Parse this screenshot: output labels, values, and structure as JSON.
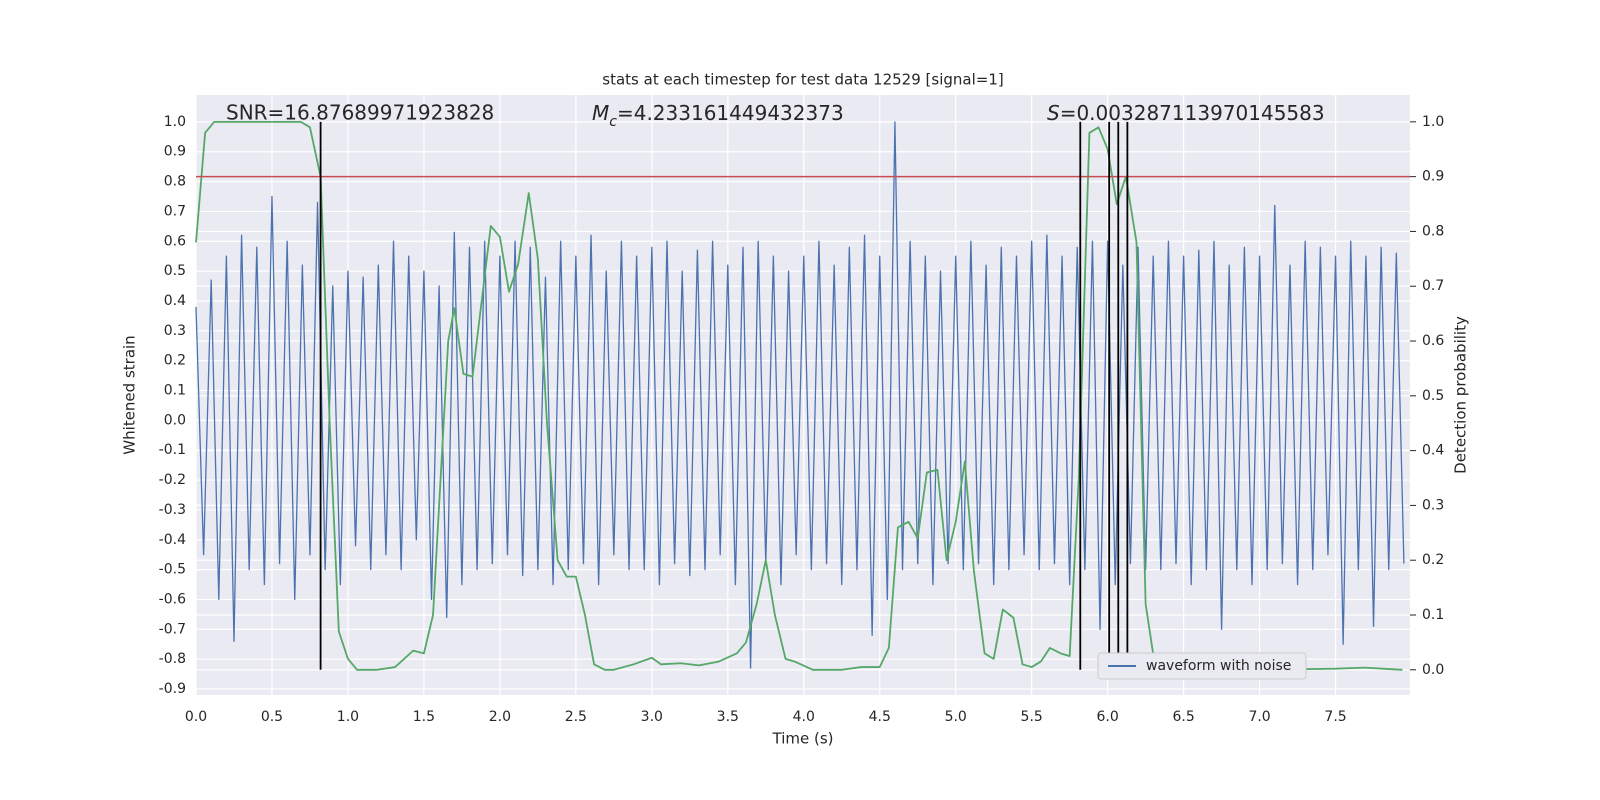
{
  "chart_data": {
    "type": "line",
    "title": "stats at each timestep for test data 12529 [signal=1]",
    "xlabel": "Time (s)",
    "ylabel": "Whitened strain",
    "y2label": "Detection probability",
    "annotations": [
      "SNR=16.87689971923828",
      {
        "symbol": "M",
        "subscript": "c",
        "text": "=4.233161449432373"
      },
      {
        "symbol": "S",
        "text": "=0.003287113970145583"
      }
    ],
    "xlim": [
      0,
      7.99
    ],
    "ylim": [
      -0.92,
      1.09
    ],
    "y2lim": [
      -0.046,
      1.049
    ],
    "xticks": [
      {
        "value": 0,
        "label": "0.0"
      },
      0.5,
      {
        "value": 1,
        "label": "1.0"
      },
      1.5,
      {
        "value": 2,
        "label": "2.0"
      },
      2.5,
      {
        "value": 3,
        "label": "3.0"
      },
      3.5,
      {
        "value": 4,
        "label": "4.0"
      },
      4.5,
      {
        "value": 5,
        "label": "5.0"
      },
      5.5,
      {
        "value": 6,
        "label": "6.0"
      },
      6.5,
      {
        "value": 7,
        "label": "7.0"
      },
      7.5
    ],
    "yticks": [
      -0.9,
      -0.8,
      -0.7,
      -0.6,
      -0.5,
      -0.4,
      -0.3,
      -0.2,
      -0.1,
      {
        "value": 0,
        "label": "0.0"
      },
      0.1,
      0.2,
      0.3,
      0.4,
      0.5,
      0.6,
      0.7,
      0.8,
      0.9,
      {
        "value": 1,
        "label": "1.0"
      }
    ],
    "y2ticks": [
      {
        "value": 0,
        "label": "0.0"
      },
      0.1,
      0.2,
      0.3,
      0.4,
      0.5,
      0.6,
      0.7,
      0.8,
      0.9,
      {
        "value": 1,
        "label": "1.0"
      }
    ],
    "grid": true,
    "legend": "lower right",
    "series": [
      {
        "name": "waveform with noise",
        "color": "#4c72b0",
        "x": [
          0,
          0.05,
          0.1,
          0.15,
          0.2,
          0.25,
          0.3,
          0.35,
          0.4,
          0.45,
          0.5,
          0.55,
          0.6,
          0.65,
          0.7,
          0.75,
          0.8,
          0.85,
          0.9,
          0.95,
          1,
          1.05,
          1.1,
          1.15,
          1.2,
          1.25,
          1.3,
          1.35,
          1.4,
          1.45,
          1.5,
          1.55,
          1.6,
          1.65,
          1.7,
          1.75,
          1.8,
          1.85,
          1.9,
          1.95,
          2,
          2.05,
          2.1,
          2.15,
          2.2,
          2.25,
          2.3,
          2.35,
          2.4,
          2.45,
          2.5,
          2.55,
          2.6,
          2.65,
          2.7,
          2.75,
          2.8,
          2.85,
          2.9,
          2.95,
          3,
          3.05,
          3.1,
          3.15,
          3.2,
          3.25,
          3.3,
          3.35,
          3.4,
          3.45,
          3.5,
          3.55,
          3.6,
          3.65,
          3.7,
          3.75,
          3.8,
          3.85,
          3.9,
          3.95,
          4,
          4.05,
          4.1,
          4.15,
          4.2,
          4.25,
          4.3,
          4.35,
          4.4,
          4.45,
          4.5,
          4.55,
          4.6,
          4.65,
          4.7,
          4.75,
          4.8,
          4.85,
          4.9,
          4.95,
          5,
          5.05,
          5.1,
          5.15,
          5.2,
          5.25,
          5.3,
          5.35,
          5.4,
          5.45,
          5.5,
          5.55,
          5.6,
          5.65,
          5.7,
          5.75,
          5.8,
          5.85,
          5.9,
          5.95,
          6,
          6.05,
          6.1,
          6.15,
          6.2,
          6.25,
          6.3,
          6.35,
          6.4,
          6.45,
          6.5,
          6.55,
          6.6,
          6.65,
          6.7,
          6.75,
          6.8,
          6.85,
          6.9,
          6.95,
          7,
          7.05,
          7.1,
          7.15,
          7.2,
          7.25,
          7.3,
          7.35,
          7.4,
          7.45,
          7.5,
          7.55,
          7.6,
          7.65,
          7.7,
          7.75,
          7.8,
          7.85,
          7.9,
          7.95
        ],
        "values": [
          0.38,
          -0.45,
          0.47,
          -0.6,
          0.55,
          -0.74,
          0.62,
          -0.5,
          0.58,
          -0.55,
          0.75,
          -0.48,
          0.6,
          -0.6,
          0.52,
          -0.45,
          0.73,
          -0.5,
          0.45,
          -0.55,
          0.5,
          -0.42,
          0.48,
          -0.5,
          0.52,
          -0.45,
          0.6,
          -0.5,
          0.55,
          -0.4,
          0.5,
          -0.6,
          0.45,
          -0.66,
          0.63,
          -0.55,
          0.58,
          -0.5,
          0.6,
          -0.48,
          0.55,
          -0.45,
          0.6,
          -0.52,
          0.58,
          -0.5,
          0.48,
          -0.55,
          0.6,
          -0.5,
          0.55,
          -0.48,
          0.62,
          -0.55,
          0.5,
          -0.45,
          0.6,
          -0.5,
          0.55,
          -0.5,
          0.58,
          -0.55,
          0.6,
          -0.48,
          0.5,
          -0.52,
          0.57,
          -0.5,
          0.6,
          -0.45,
          0.52,
          -0.55,
          0.58,
          -0.83,
          0.6,
          -0.48,
          0.55,
          -0.55,
          0.5,
          -0.45,
          0.55,
          -0.5,
          0.6,
          -0.48,
          0.52,
          -0.55,
          0.58,
          -0.5,
          0.62,
          -0.72,
          0.55,
          -0.6,
          1.0,
          -0.5,
          0.6,
          -0.48,
          0.55,
          -0.55,
          0.5,
          -0.48,
          0.55,
          -0.5,
          0.6,
          -0.48,
          0.52,
          -0.55,
          0.58,
          -0.5,
          0.55,
          -0.45,
          0.6,
          -0.5,
          0.62,
          -0.48,
          0.55,
          -0.55,
          0.58,
          -0.5,
          0.6,
          -0.7,
          0.6,
          -0.55,
          0.52,
          -0.48,
          0.58,
          -0.5,
          0.55,
          -0.5,
          0.6,
          -0.48,
          0.55,
          -0.55,
          0.57,
          -0.5,
          0.6,
          -0.7,
          0.52,
          -0.5,
          0.58,
          -0.55,
          0.55,
          -0.5,
          0.72,
          -0.48,
          0.52,
          -0.55,
          0.6,
          -0.5,
          0.58,
          -0.45,
          0.55,
          -0.75,
          0.6,
          -0.5,
          0.55,
          -0.69,
          0.58,
          -0.5,
          0.56,
          -0.48
        ]
      },
      {
        "color": "#55a868",
        "axis": "y2",
        "x": [
          0,
          0.06,
          0.12,
          0.25,
          0.38,
          0.5,
          0.62,
          0.69,
          0.75,
          0.82,
          0.88,
          0.94,
          1,
          1.06,
          1.19,
          1.31,
          1.43,
          1.5,
          1.56,
          1.62,
          1.66,
          1.7,
          1.76,
          1.82,
          1.94,
          2,
          2.06,
          2.12,
          2.19,
          2.25,
          2.31,
          2.38,
          2.44,
          2.5,
          2.56,
          2.62,
          2.69,
          2.75,
          2.88,
          3,
          3.06,
          3.19,
          3.31,
          3.44,
          3.56,
          3.62,
          3.69,
          3.75,
          3.81,
          3.88,
          3.94,
          4.06,
          4.25,
          4.38,
          4.5,
          4.56,
          4.62,
          4.69,
          4.75,
          4.81,
          4.88,
          4.94,
          5,
          5.06,
          5.12,
          5.19,
          5.25,
          5.31,
          5.38,
          5.44,
          5.5,
          5.56,
          5.62,
          5.69,
          5.75,
          5.81,
          5.88,
          5.94,
          6,
          6.06,
          6.12,
          6.19,
          6.25,
          6.31,
          6.5,
          6.75,
          7,
          7.25,
          7.5,
          7.69,
          7.81,
          7.94
        ],
        "values": [
          0.78,
          0.98,
          1,
          1,
          1,
          1,
          1,
          1,
          0.99,
          0.9,
          0.45,
          0.07,
          0.02,
          0,
          0,
          0.005,
          0.035,
          0.03,
          0.1,
          0.4,
          0.6,
          0.66,
          0.54,
          0.535,
          0.81,
          0.79,
          0.69,
          0.74,
          0.87,
          0.75,
          0.45,
          0.2,
          0.17,
          0.17,
          0.1,
          0.01,
          0,
          0,
          0.01,
          0.022,
          0.01,
          0.012,
          0.008,
          0.015,
          0.03,
          0.05,
          0.12,
          0.2,
          0.1,
          0.02,
          0.015,
          0,
          0,
          0.005,
          0.005,
          0.04,
          0.26,
          0.27,
          0.24,
          0.36,
          0.365,
          0.2,
          0.27,
          0.38,
          0.18,
          0.03,
          0.02,
          0.11,
          0.095,
          0.01,
          0.005,
          0.015,
          0.04,
          0.03,
          0.025,
          0.35,
          0.98,
          0.99,
          0.95,
          0.85,
          0.9,
          0.78,
          0.12,
          0.01,
          0,
          0.002,
          0.001,
          0.001,
          0.002,
          0.004,
          0.002,
          0
        ]
      }
    ],
    "hline": {
      "y": 0.9,
      "axis": "y2",
      "color": "#c44e52"
    },
    "vlines": {
      "x": [
        0.82,
        5.82,
        6.01,
        6.07,
        6.13
      ],
      "y2range": [
        0,
        1
      ],
      "color": "#000000"
    }
  }
}
